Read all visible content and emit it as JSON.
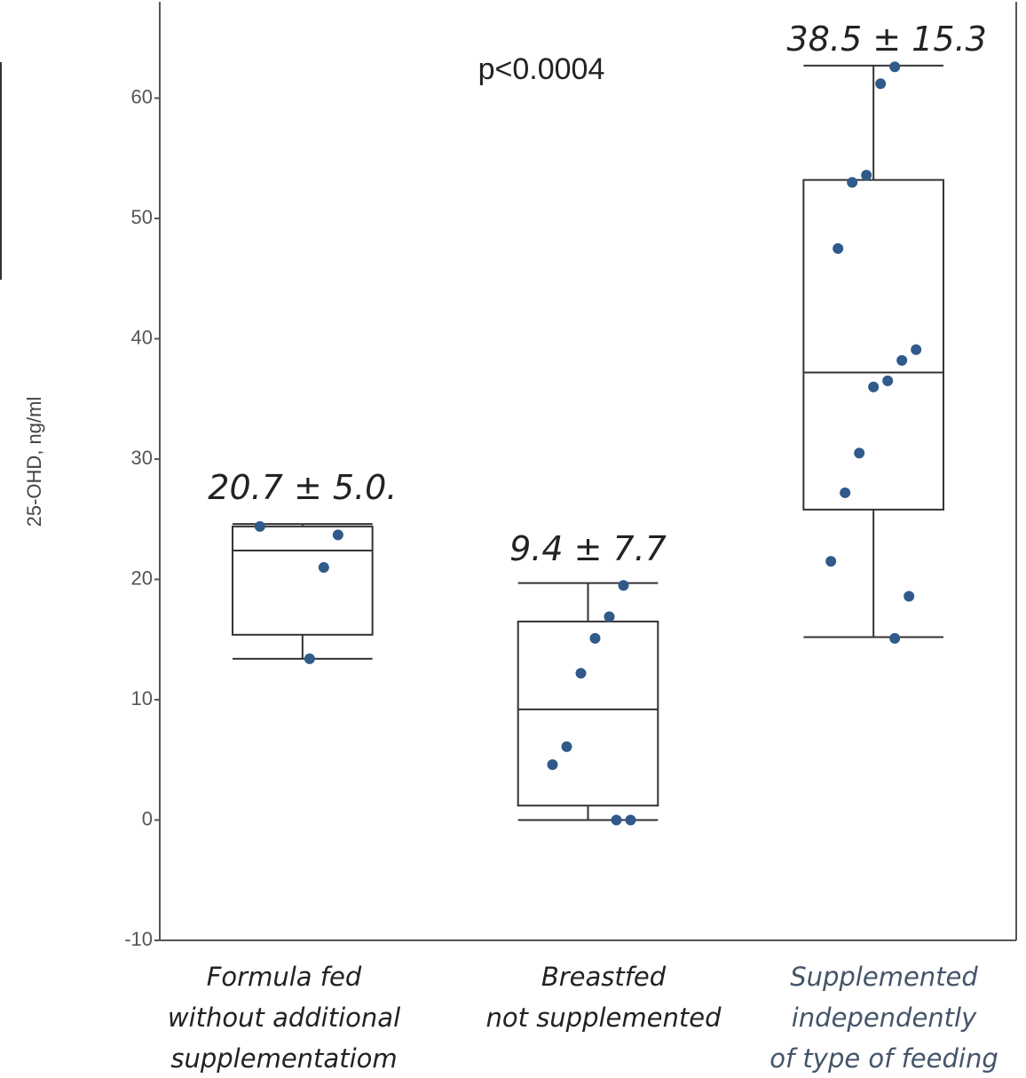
{
  "chart_data": {
    "type": "box",
    "y_label": "25-OHD, ng/ml",
    "p_value": "p<0.0004",
    "ylim": [
      -10,
      68
    ],
    "yticks": [
      -10,
      0,
      10,
      20,
      30,
      40,
      50,
      60
    ],
    "grid": false,
    "point_color": "#2f5a8a",
    "categories": [
      [
        "Formula fed",
        "without additional",
        "supplementatiom"
      ],
      [
        "Breastfed",
        "not supplemented"
      ],
      [
        "Supplemented",
        "independently",
        "of type of feeding"
      ]
    ],
    "category_colors": [
      "#222222",
      "#222222",
      "#44546a"
    ],
    "annotations": [
      "20.7 ± 5.0.",
      "9.4 ± 7.7",
      "38.5 ± 15.3"
    ],
    "boxes": [
      {
        "whislo": 13.4,
        "q1": 15.4,
        "median": 22.4,
        "q3": 24.4,
        "whishi": 24.6,
        "points": [
          24.4,
          23.7,
          21.0,
          13.4
        ]
      },
      {
        "whislo": 0,
        "q1": 1.2,
        "median": 9.2,
        "q3": 16.5,
        "whishi": 19.7,
        "points": [
          19.5,
          16.9,
          15.1,
          12.2,
          6.1,
          4.6,
          0,
          0
        ]
      },
      {
        "whislo": 15.2,
        "q1": 25.8,
        "median": 37.2,
        "q3": 53.2,
        "whishi": 62.7,
        "points": [
          62.6,
          61.2,
          53.6,
          53.0,
          47.5,
          39.1,
          38.2,
          36.5,
          36.0,
          30.5,
          27.2,
          21.5,
          18.6,
          15.1
        ]
      }
    ]
  }
}
